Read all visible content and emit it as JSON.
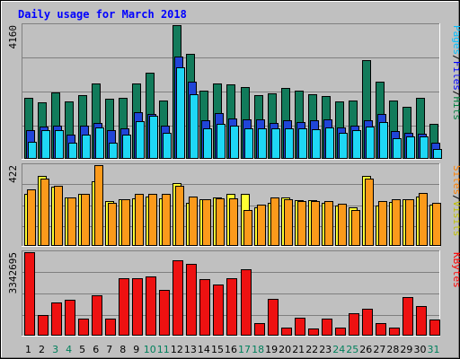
{
  "title": "Daily usage for March 2018",
  "colors": {
    "frame": "#c0c0c0",
    "panel": "#c0c0c0",
    "grid": "#7f7f7f",
    "title": "#0000ff",
    "hits": "#008040",
    "hits_fill": "#127b5b",
    "files": "#0000ff",
    "files_fill": "#2045d8",
    "pages": "#00c0ff",
    "pages_fill": "#1ed7f5",
    "visits": "#ffff00",
    "visits_fill": "#ffff33",
    "sites": "#ff8000",
    "sites_fill": "#fb9a1b",
    "kbytes": "#ff0000",
    "kbytes_fill": "#ee1111",
    "weekday_label": "#000000",
    "weekend_label": "#00805c"
  },
  "panel_labels": {
    "top": [
      {
        "text": "Pages",
        "color": "#00c0ff"
      },
      {
        "text": "/",
        "color": "#000000"
      },
      {
        "text": "Files",
        "color": "#0000ff"
      },
      {
        "text": "/",
        "color": "#000000"
      },
      {
        "text": "Hits",
        "color": "#008040"
      }
    ],
    "middle": [
      {
        "text": "Sites",
        "color": "#ff8000"
      },
      {
        "text": "/",
        "color": "#000000"
      },
      {
        "text": "Visits",
        "color": "#c0c000"
      }
    ],
    "bottom": [
      {
        "text": "KBytes",
        "color": "#ff0000"
      }
    ]
  },
  "chart_data": [
    {
      "type": "bar",
      "panel": "top",
      "ymax_label": "4160",
      "ylim": [
        0,
        4160
      ],
      "categories": [
        "1",
        "2",
        "3",
        "4",
        "5",
        "6",
        "7",
        "8",
        "9",
        "10",
        "11",
        "12",
        "13",
        "14",
        "15",
        "16",
        "17",
        "18",
        "19",
        "20",
        "21",
        "22",
        "23",
        "24",
        "25",
        "26",
        "27",
        "28",
        "29",
        "30",
        "31"
      ],
      "weekend": [
        "3",
        "4",
        "10",
        "11",
        "17",
        "18",
        "24",
        "25",
        "31"
      ],
      "series": [
        {
          "name": "Hits",
          "color": "#127b5b",
          "values": [
            1880,
            1730,
            2040,
            1780,
            1970,
            2320,
            1860,
            1880,
            2340,
            2660,
            1790,
            4160,
            3260,
            2120,
            2320,
            2300,
            2230,
            1960,
            2010,
            2180,
            2120,
            2000,
            1930,
            1770,
            1810,
            3050,
            2390,
            1800,
            1600,
            1880,
            1070
          ]
        },
        {
          "name": "Files",
          "color": "#2045d8",
          "values": [
            880,
            970,
            1020,
            720,
            1000,
            1100,
            880,
            920,
            1440,
            1390,
            1010,
            3180,
            2380,
            1190,
            1400,
            1240,
            1210,
            1210,
            1100,
            1190,
            1130,
            1170,
            1200,
            950,
            1000,
            1180,
            1380,
            850,
            790,
            760,
            480
          ]
        },
        {
          "name": "Pages",
          "color": "#1ed7f5",
          "values": [
            500,
            860,
            880,
            490,
            740,
            960,
            490,
            720,
            1160,
            1310,
            800,
            2850,
            1990,
            940,
            1060,
            1010,
            940,
            930,
            920,
            920,
            920,
            910,
            960,
            780,
            880,
            990,
            1130,
            630,
            680,
            670,
            290
          ]
        }
      ]
    },
    {
      "type": "bar",
      "panel": "middle",
      "ymax_label": "422",
      "ylim": [
        0,
        422
      ],
      "categories": [
        "1",
        "2",
        "3",
        "4",
        "5",
        "6",
        "7",
        "8",
        "9",
        "10",
        "11",
        "12",
        "13",
        "14",
        "15",
        "16",
        "17",
        "18",
        "19",
        "20",
        "21",
        "22",
        "23",
        "24",
        "25",
        "26",
        "27",
        "28",
        "29",
        "30",
        "31"
      ],
      "series": [
        {
          "name": "Visits",
          "color": "#ffff33",
          "values": [
            270,
            366,
            310,
            252,
            269,
            338,
            231,
            242,
            246,
            256,
            248,
            328,
            221,
            244,
            250,
            272,
            269,
            198,
            221,
            253,
            235,
            235,
            221,
            210,
            199,
            364,
            210,
            228,
            240,
            256,
            211
          ]
        },
        {
          "name": "Sites",
          "color": "#fb9a1b",
          "values": [
            295,
            350,
            312,
            250,
            268,
            422,
            225,
            240,
            268,
            268,
            268,
            312,
            258,
            244,
            248,
            248,
            183,
            215,
            250,
            240,
            230,
            230,
            230,
            220,
            183,
            350,
            230,
            240,
            240,
            273,
            225
          ]
        }
      ]
    },
    {
      "type": "bar",
      "panel": "bottom",
      "ymax_label": "3342695",
      "ylim": [
        0,
        3342695
      ],
      "categories": [
        "1",
        "2",
        "3",
        "4",
        "5",
        "6",
        "7",
        "8",
        "9",
        "10",
        "11",
        "12",
        "13",
        "14",
        "15",
        "16",
        "17",
        "18",
        "19",
        "20",
        "21",
        "22",
        "23",
        "24",
        "25",
        "26",
        "27",
        "28",
        "29",
        "30",
        "31"
      ],
      "series": [
        {
          "name": "KBytes",
          "color": "#ee1111",
          "values": [
            3342695,
            790000,
            1290000,
            1410000,
            660000,
            1590000,
            660000,
            2290000,
            2280000,
            2370000,
            1810000,
            3010000,
            2870000,
            2260000,
            2050000,
            2290000,
            2650000,
            480000,
            1450000,
            290000,
            690000,
            250000,
            650000,
            290000,
            870000,
            1060000,
            470000,
            290000,
            1510000,
            1150000,
            630000
          ]
        }
      ]
    }
  ]
}
